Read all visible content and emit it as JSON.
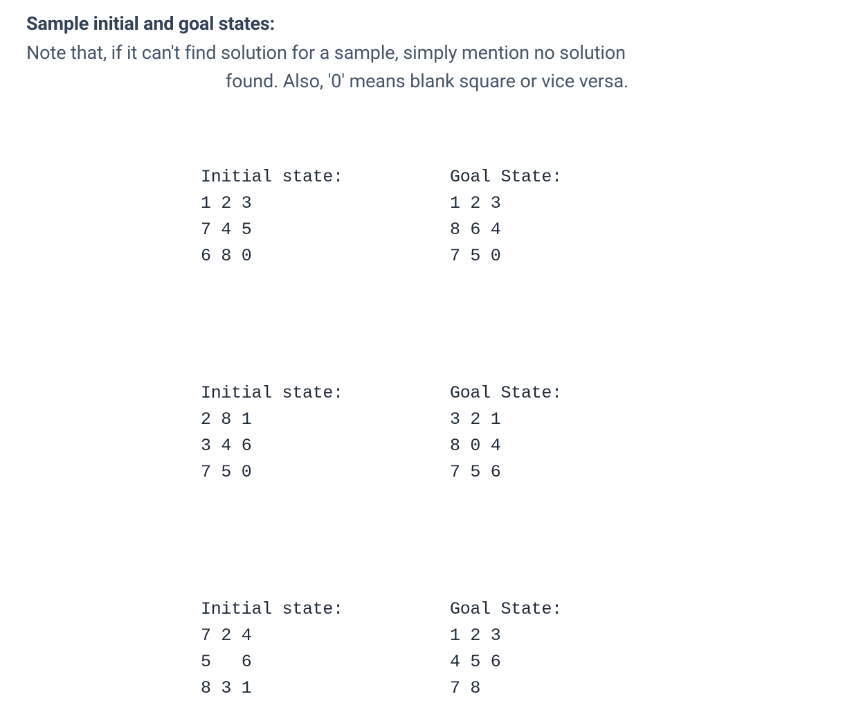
{
  "colors": {
    "heading": "#334155",
    "body_text": "#475569",
    "mono_text": "#1f2937",
    "background": "#ffffff"
  },
  "typography": {
    "heading_fontsize": 27,
    "heading_weight": 700,
    "body_fontsize": 27,
    "mono_fontsize": 25,
    "mono_family": "monospace"
  },
  "heading": "Sample initial and goal states:",
  "note_line1": "Note that, if it can't find solution for a sample, simply mention no solution",
  "note_line2": "found. Also, '0' means blank square or vice versa.",
  "samples": [
    {
      "initial": {
        "label": "Initial state:",
        "rows": [
          "1 2 3",
          "7 4 5",
          "6 8 0"
        ]
      },
      "goal": {
        "label": "Goal State:",
        "rows": [
          "1 2 3",
          "8 6 4",
          "7 5 0"
        ]
      }
    },
    {
      "initial": {
        "label": "Initial state:",
        "rows": [
          "2 8 1",
          "3 4 6",
          "7 5 0"
        ]
      },
      "goal": {
        "label": "Goal State:",
        "rows": [
          "3 2 1",
          "8 0 4",
          "7 5 6"
        ]
      }
    },
    {
      "initial": {
        "label": "Initial state:",
        "rows": [
          "7 2 4",
          "5   6",
          "8 3 1"
        ]
      },
      "goal": {
        "label": "Goal State:",
        "rows": [
          "1 2 3",
          "4 5 6",
          "7 8"
        ]
      }
    }
  ]
}
